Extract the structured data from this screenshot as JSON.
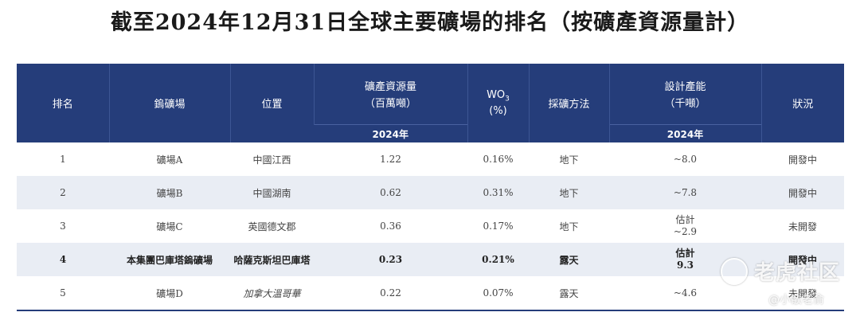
{
  "title": "截至2024年12月31日全球主要礦場的排名（按礦產資源量計）",
  "header": {
    "rank": "排名",
    "mine": "鎢礦場",
    "location": "位置",
    "resource_line1": "礦產資源量",
    "resource_line2": "（百萬噸）",
    "wo3_main": "WO",
    "wo3_sub": "3",
    "wo3_unit": "(%)",
    "method": "採礦方法",
    "capacity_line1": "設計產能",
    "capacity_line2": "（千噸）",
    "status": "狀況",
    "year_resource": "2024年",
    "year_capacity": "2024年"
  },
  "rows": [
    {
      "rank": "1",
      "mine": "礦場A",
      "location": "中國江西",
      "resource": "1.22",
      "wo3": "0.16%",
      "method": "地下",
      "capacity_1": "~8.0",
      "capacity_2": "",
      "status": "開發中"
    },
    {
      "rank": "2",
      "mine": "礦場B",
      "location": "中國湖南",
      "resource": "0.62",
      "wo3": "0.31%",
      "method": "地下",
      "capacity_1": "~7.8",
      "capacity_2": "",
      "status": "開發中"
    },
    {
      "rank": "3",
      "mine": "礦場C",
      "location": "英國德文郡",
      "resource": "0.36",
      "wo3": "0.17%",
      "method": "地下",
      "capacity_1": "估計",
      "capacity_2": "~2.9",
      "status": "未開發"
    },
    {
      "rank": "4",
      "mine": "本集團巴庫塔鎢礦場",
      "location": "哈薩克斯坦巴庫塔",
      "resource": "0.23",
      "wo3": "0.21%",
      "method": "露天",
      "capacity_1": "估計",
      "capacity_2": "9.3",
      "status": "開發中"
    },
    {
      "rank": "5",
      "mine": "礦場D",
      "location": "加拿大溫哥華",
      "resource": "0.22",
      "wo3": "0.07%",
      "method": "露天",
      "capacity_1": "~4.6",
      "capacity_2": "",
      "status": "未開發"
    }
  ],
  "watermark": {
    "brand": "老虎社区",
    "handle": "@小散老俞"
  }
}
